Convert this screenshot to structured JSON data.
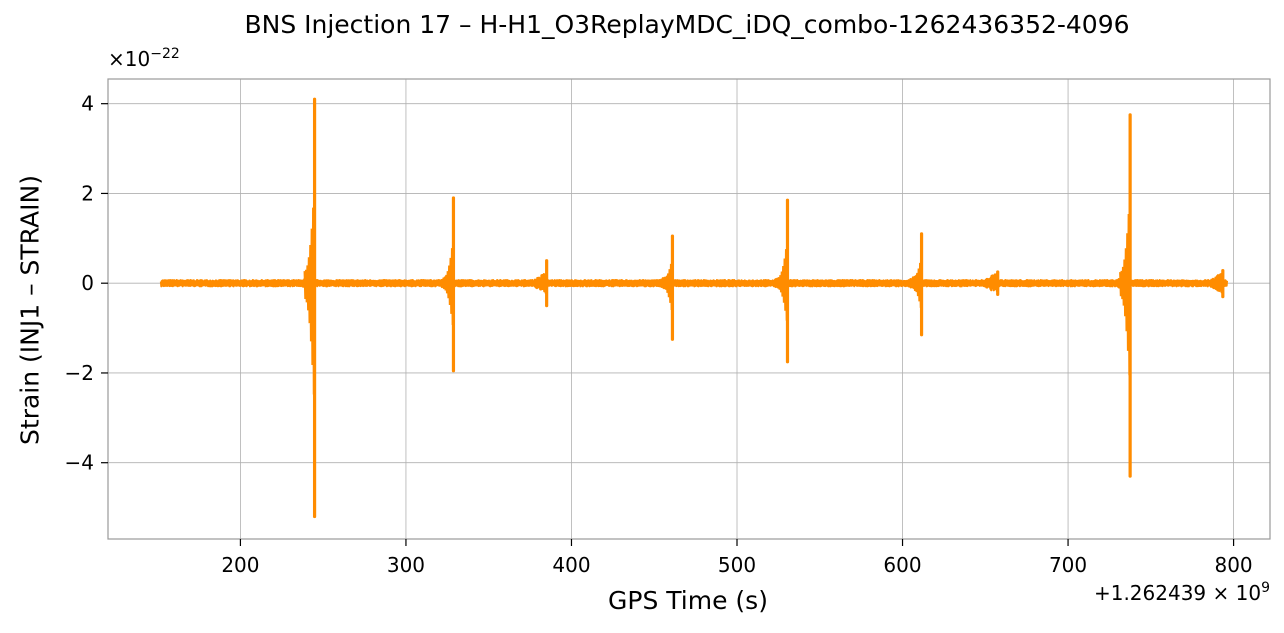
{
  "chart_data": {
    "type": "line",
    "title": "BNS Injection 17 – H-H1_O3ReplayMDC_iDQ_combo-1262436352-4096",
    "xlabel": "GPS Time (s)",
    "ylabel": "Strain (INJ1 – STRAIN)",
    "x_offset_text": {
      "prefix": "+1.262439 × 10",
      "exponent": "9"
    },
    "y_multiplier_text": {
      "prefix": "×10",
      "exponent": "−22"
    },
    "xlim": [
      120,
      822
    ],
    "ylim": [
      -5.7,
      4.55
    ],
    "x_ticks": [
      200,
      300,
      400,
      500,
      600,
      700,
      800
    ],
    "x_tick_labels": [
      "200",
      "300",
      "400",
      "500",
      "600",
      "700",
      "800"
    ],
    "y_ticks": [
      -4,
      -2,
      0,
      2,
      4
    ],
    "y_tick_labels": [
      "−4",
      "−2",
      "0",
      "2",
      "4"
    ],
    "grid": true,
    "line_color": "#ff8c00",
    "series": [
      {
        "x_start": 152,
        "x_end": 796,
        "baseline_noise": 0.07,
        "events": [
          {
            "x": 244.8,
            "ymax": 4.1,
            "ymin": -5.2
          },
          {
            "x": 328.7,
            "ymax": 1.9,
            "ymin": -1.95
          },
          {
            "x": 385.0,
            "ymax": 0.5,
            "ymin": -0.5
          },
          {
            "x": 461.0,
            "ymax": 1.05,
            "ymin": -1.25
          },
          {
            "x": 530.5,
            "ymax": 1.85,
            "ymin": -1.75
          },
          {
            "x": 611.5,
            "ymax": 1.1,
            "ymin": -1.15
          },
          {
            "x": 657.5,
            "ymax": 0.25,
            "ymin": -0.25
          },
          {
            "x": 737.5,
            "ymax": 3.75,
            "ymin": -4.3
          },
          {
            "x": 793.5,
            "ymax": 0.28,
            "ymin": -0.3
          }
        ]
      }
    ]
  }
}
